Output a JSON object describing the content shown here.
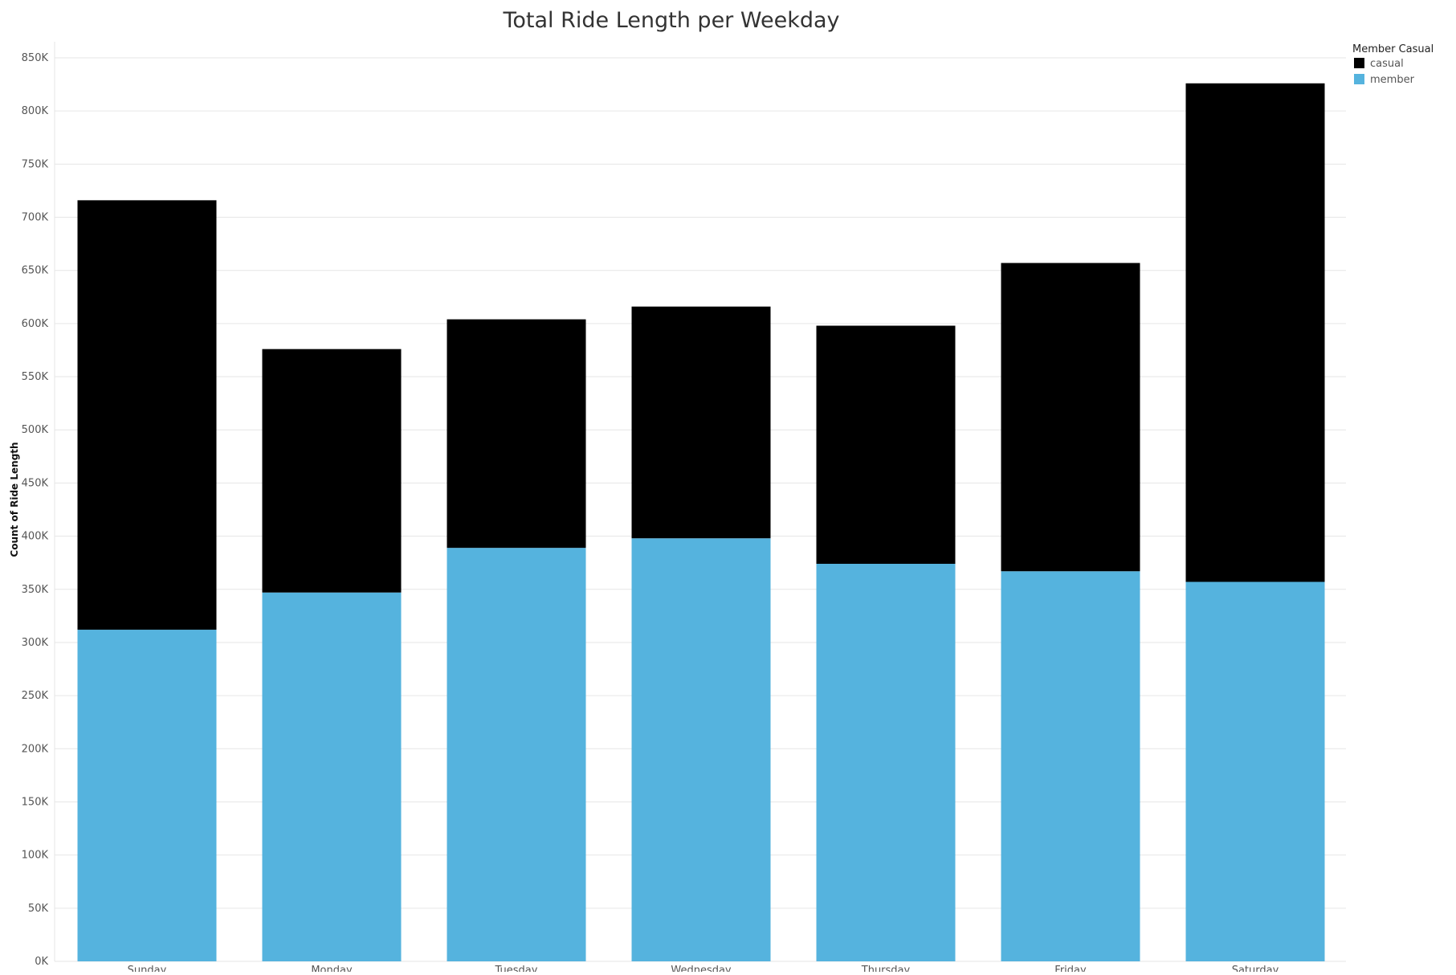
{
  "chart_data": {
    "type": "bar",
    "stacked": true,
    "title": "Total Ride Length per Weekday",
    "xlabel": "",
    "ylabel": "Count of Ride Length",
    "categories": [
      "Sunday",
      "Monday",
      "Tuesday",
      "Wednesday",
      "Thursday",
      "Friday",
      "Saturday"
    ],
    "series": [
      {
        "name": "member",
        "color": "#55b3de",
        "values": [
          312000,
          347000,
          389000,
          398000,
          374000,
          367000,
          357000
        ]
      },
      {
        "name": "casual",
        "color": "#000000",
        "values": [
          404000,
          229000,
          215000,
          218000,
          224000,
          290000,
          469000
        ]
      }
    ],
    "ylim": [
      0,
      850000
    ],
    "yticks": [
      0,
      50000,
      100000,
      150000,
      200000,
      250000,
      300000,
      350000,
      400000,
      450000,
      500000,
      550000,
      600000,
      650000,
      700000,
      750000,
      800000,
      850000
    ],
    "ytick_labels": [
      "0K",
      "50K",
      "100K",
      "150K",
      "200K",
      "250K",
      "300K",
      "350K",
      "400K",
      "450K",
      "500K",
      "550K",
      "600K",
      "650K",
      "700K",
      "750K",
      "800K",
      "850K"
    ],
    "grid": true,
    "legend": {
      "title": "Member Casual",
      "placement": "top-right",
      "entries": [
        {
          "name": "casual",
          "color": "#000000"
        },
        {
          "name": "member",
          "color": "#55b3de"
        }
      ]
    }
  }
}
